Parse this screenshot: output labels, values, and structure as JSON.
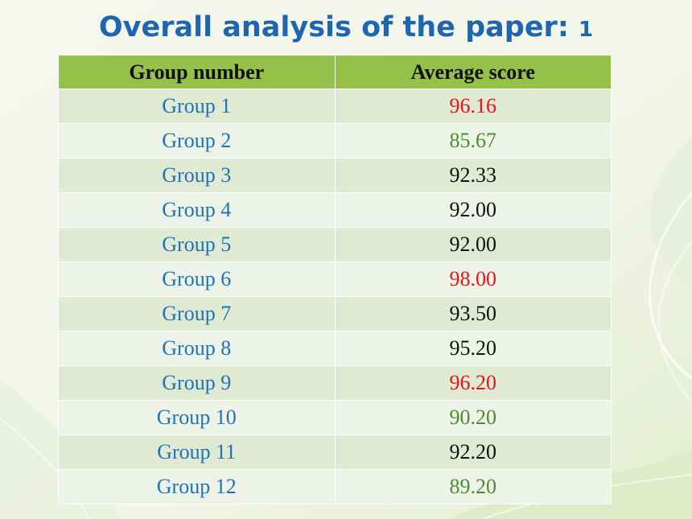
{
  "title": {
    "text": "Overall analysis of the paper:",
    "number": "1"
  },
  "table": {
    "headers": [
      "Group number",
      "Average score"
    ],
    "rows": [
      {
        "group": "Group 1",
        "score": "96.16",
        "score_color": "#e8141a"
      },
      {
        "group": "Group 2",
        "score": "85.67",
        "score_color": "#4e8a32"
      },
      {
        "group": "Group 3",
        "score": "92.33",
        "score_color": "#111111"
      },
      {
        "group": "Group 4",
        "score": "92.00",
        "score_color": "#111111"
      },
      {
        "group": "Group 5",
        "score": "92.00",
        "score_color": "#111111"
      },
      {
        "group": "Group 6",
        "score": "98.00",
        "score_color": "#e8141a"
      },
      {
        "group": "Group 7",
        "score": "93.50",
        "score_color": "#111111"
      },
      {
        "group": "Group 8",
        "score": "95.20",
        "score_color": "#111111"
      },
      {
        "group": "Group 9",
        "score": "96.20",
        "score_color": "#e8141a"
      },
      {
        "group": "Group 10",
        "score": "90.20",
        "score_color": "#4e8a32"
      },
      {
        "group": "Group 11",
        "score": "92.20",
        "score_color": "#111111"
      },
      {
        "group": "Group 12",
        "score": "89.20",
        "score_color": "#4e8a32"
      }
    ]
  },
  "colors": {
    "title": "#1f66b0",
    "header_bg": "#95c14a",
    "row_bg_odd": "#e0e9d1",
    "row_bg_even": "#eef3e7",
    "group_text": "#1d72b8"
  }
}
